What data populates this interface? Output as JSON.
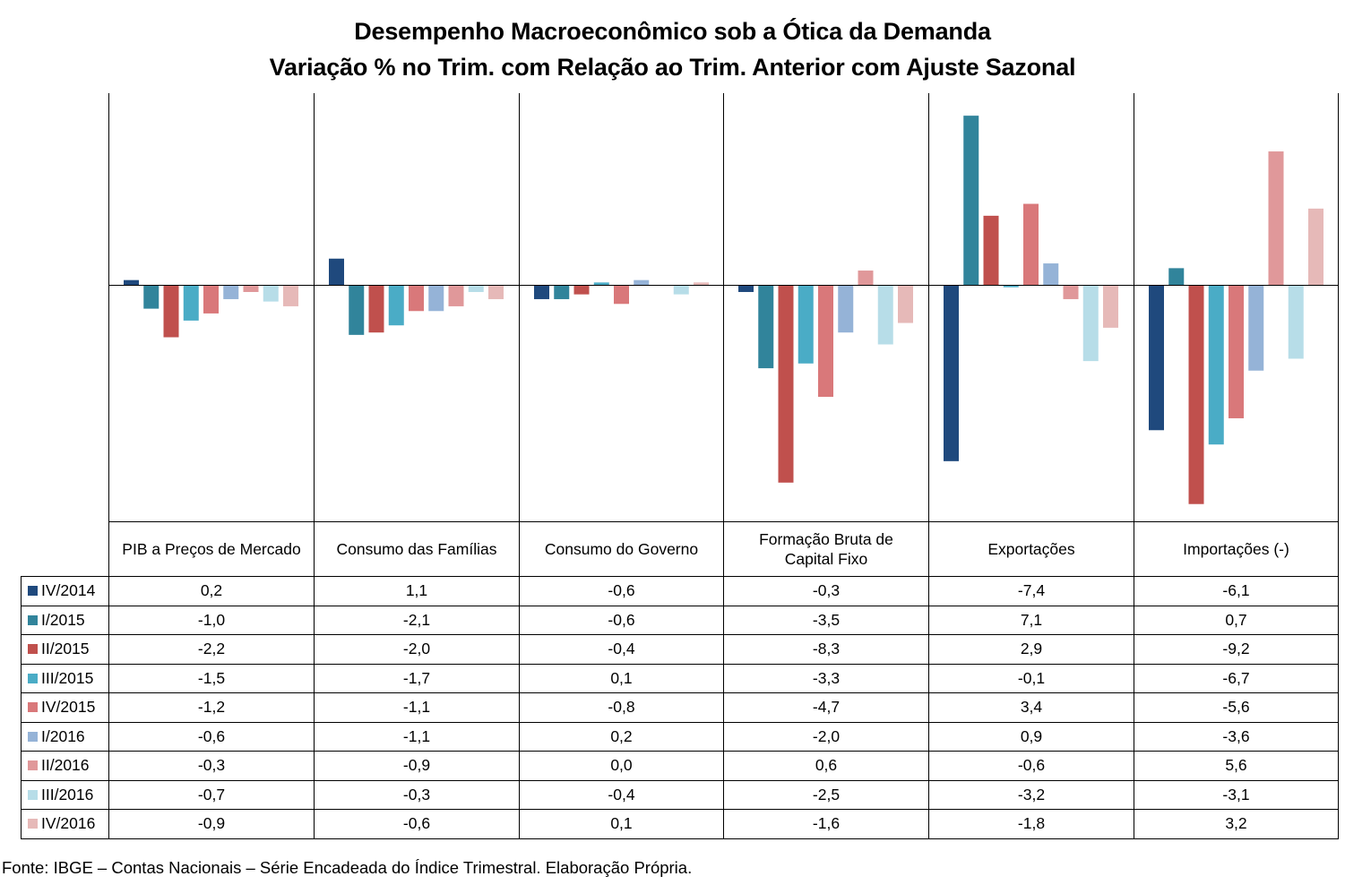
{
  "title_line1": "Desempenho Macroeconômico sob a Ótica da Demanda",
  "title_line2": "Variação % no Trim. com Relação ao Trim. Anterior com Ajuste Sazonal",
  "source": "Fonte: IBGE – Contas Nacionais – Série Encadeada do Índice Trimestral. Elaboração Própria.",
  "chart_data": {
    "type": "bar",
    "title": "Desempenho Macroeconômico sob a Ótica da Demanda — Variação % no Trim. com Relação ao Trim. Anterior com Ajuste Sazonal",
    "categories": [
      "PIB a Preços de Mercado",
      "Consumo das Famílias",
      "Consumo do Governo",
      "Formação Bruta de Capital Fixo",
      "Exportações",
      "Importações (-)"
    ],
    "category_lines": [
      [
        "PIB a Preços de Mercado"
      ],
      [
        "Consumo das Famílias"
      ],
      [
        "Consumo do Governo"
      ],
      [
        "Formação Bruta de",
        "Capital Fixo"
      ],
      [
        "Exportações"
      ],
      [
        "Importações (-)"
      ]
    ],
    "series": [
      {
        "name": "IV/2014",
        "color": "#1f497d",
        "values": [
          0.2,
          1.1,
          -0.6,
          -0.3,
          -7.4,
          -6.1
        ],
        "labels": [
          "0,2",
          "1,1",
          "-0,6",
          "-0,3",
          "-7,4",
          "-6,1"
        ]
      },
      {
        "name": "I/2015",
        "color": "#31849b",
        "values": [
          -1.0,
          -2.1,
          -0.6,
          -3.5,
          7.1,
          0.7
        ],
        "labels": [
          "-1,0",
          "-2,1",
          "-0,6",
          "-3,5",
          "7,1",
          "0,7"
        ]
      },
      {
        "name": "II/2015",
        "color": "#c0504d",
        "values": [
          -2.2,
          -2.0,
          -0.4,
          -8.3,
          2.9,
          -9.2
        ],
        "labels": [
          "-2,2",
          "-2,0",
          "-0,4",
          "-8,3",
          "2,9",
          "-9,2"
        ]
      },
      {
        "name": "III/2015",
        "color": "#4aacc6",
        "values": [
          -1.5,
          -1.7,
          0.1,
          -3.3,
          -0.1,
          -6.7
        ],
        "labels": [
          "-1,5",
          "-1,7",
          "0,1",
          "-3,3",
          "-0,1",
          "-6,7"
        ]
      },
      {
        "name": "IV/2015",
        "color": "#d9787a",
        "values": [
          -1.2,
          -1.1,
          -0.8,
          -4.7,
          3.4,
          -5.6
        ],
        "labels": [
          "-1,2",
          "-1,1",
          "-0,8",
          "-4,7",
          "3,4",
          "-5,6"
        ]
      },
      {
        "name": "I/2016",
        "color": "#95b3d7",
        "values": [
          -0.6,
          -1.1,
          0.2,
          -2.0,
          0.9,
          -3.6
        ],
        "labels": [
          "-0,6",
          "-1,1",
          "0,2",
          "-2,0",
          "0,9",
          "-3,6"
        ]
      },
      {
        "name": "II/2016",
        "color": "#e0989a",
        "values": [
          -0.3,
          -0.9,
          0.0,
          0.6,
          -0.6,
          5.6
        ],
        "labels": [
          "-0,3",
          "-0,9",
          "0,0",
          "0,6",
          "-0,6",
          "5,6"
        ]
      },
      {
        "name": "III/2016",
        "color": "#b7dde8",
        "values": [
          -0.7,
          -0.3,
          -0.4,
          -2.5,
          -3.2,
          -3.1
        ],
        "labels": [
          "-0,7",
          "-0,3",
          "-0,4",
          "-2,5",
          "-3,2",
          "-3,1"
        ]
      },
      {
        "name": "IV/2016",
        "color": "#e6b9b8",
        "values": [
          -0.9,
          -0.6,
          0.1,
          -1.6,
          -1.8,
          3.2
        ],
        "labels": [
          "-0,9",
          "-0,6",
          "0,1",
          "-1,6",
          "-1,8",
          "3,2"
        ]
      }
    ],
    "ylim": [
      -10,
      7.5
    ],
    "grid": false,
    "legend": "table-left"
  }
}
